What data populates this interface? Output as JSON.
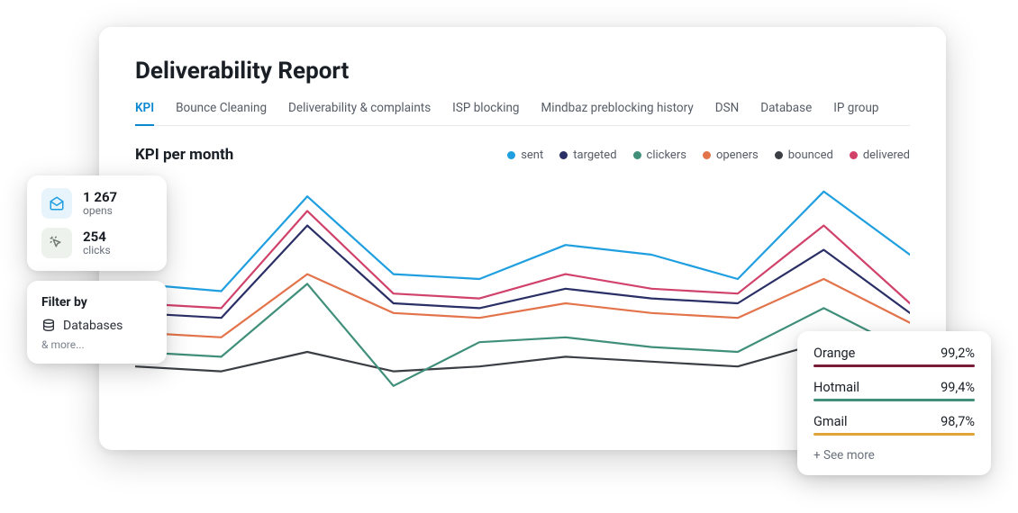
{
  "colors": {
    "text_primary": "#1a1f26",
    "text_secondary": "#565c66",
    "text_muted": "#7a818c",
    "accent": "#0b87d1",
    "card_bg": "#ffffff",
    "divider": "#e6e8eb"
  },
  "main": {
    "title": "Deliverability Report",
    "tabs": [
      {
        "label": "KPI",
        "active": true
      },
      {
        "label": "Bounce Cleaning",
        "active": false
      },
      {
        "label": "Deliverability & complaints",
        "active": false
      },
      {
        "label": "ISP blocking",
        "active": false
      },
      {
        "label": "Mindbaz preblocking history",
        "active": false
      },
      {
        "label": "DSN",
        "active": false
      },
      {
        "label": "Database",
        "active": false
      },
      {
        "label": "IP group",
        "active": false
      }
    ],
    "chart": {
      "title": "KPI per month",
      "type": "line",
      "legend": [
        {
          "label": "sent",
          "color": "#1f9fe0"
        },
        {
          "label": "targeted",
          "color": "#2a2f66"
        },
        {
          "label": "clickers",
          "color": "#3f8f7a"
        },
        {
          "label": "openers",
          "color": "#e3734a"
        },
        {
          "label": "bounced",
          "color": "#3b3f45"
        },
        {
          "label": "delivered",
          "color": "#d1426b"
        }
      ],
      "x_points": 9,
      "ylim": [
        0,
        100
      ],
      "line_width": 2.2,
      "background_color": "#ffffff",
      "series": {
        "sent": [
          58,
          55,
          94,
          62,
          60,
          74,
          70,
          60,
          96,
          70
        ],
        "delivered": [
          50,
          48,
          88,
          54,
          52,
          62,
          56,
          54,
          82,
          50
        ],
        "targeted": [
          46,
          44,
          82,
          50,
          48,
          56,
          52,
          50,
          72,
          46
        ],
        "openers": [
          38,
          36,
          62,
          46,
          44,
          50,
          46,
          44,
          60,
          42
        ],
        "clickers": [
          30,
          28,
          58,
          16,
          34,
          36,
          32,
          30,
          48,
          30
        ],
        "bounced": [
          24,
          22,
          30,
          22,
          24,
          28,
          26,
          24,
          34,
          24
        ]
      }
    }
  },
  "stats": {
    "opens": {
      "value": "1 267",
      "label": "opens",
      "icon_bg": "#e7f4fb",
      "icon_color": "#1f9fe0"
    },
    "clicks": {
      "value": "254",
      "label": "clicks",
      "icon_bg": "#eef2ec",
      "icon_color": "#6f7a72"
    }
  },
  "filter": {
    "title": "Filter by",
    "primary_label": "Databases",
    "more_label": "& more..."
  },
  "isp": {
    "rows": [
      {
        "name": "Orange",
        "value": "99,2%",
        "color": "#7a1b3a"
      },
      {
        "name": "Hotmail",
        "value": "99,4%",
        "color": "#3f8f7a"
      },
      {
        "name": "Gmail",
        "value": "98,7%",
        "color": "#e0a43a"
      }
    ],
    "see_more": "+ See more"
  }
}
